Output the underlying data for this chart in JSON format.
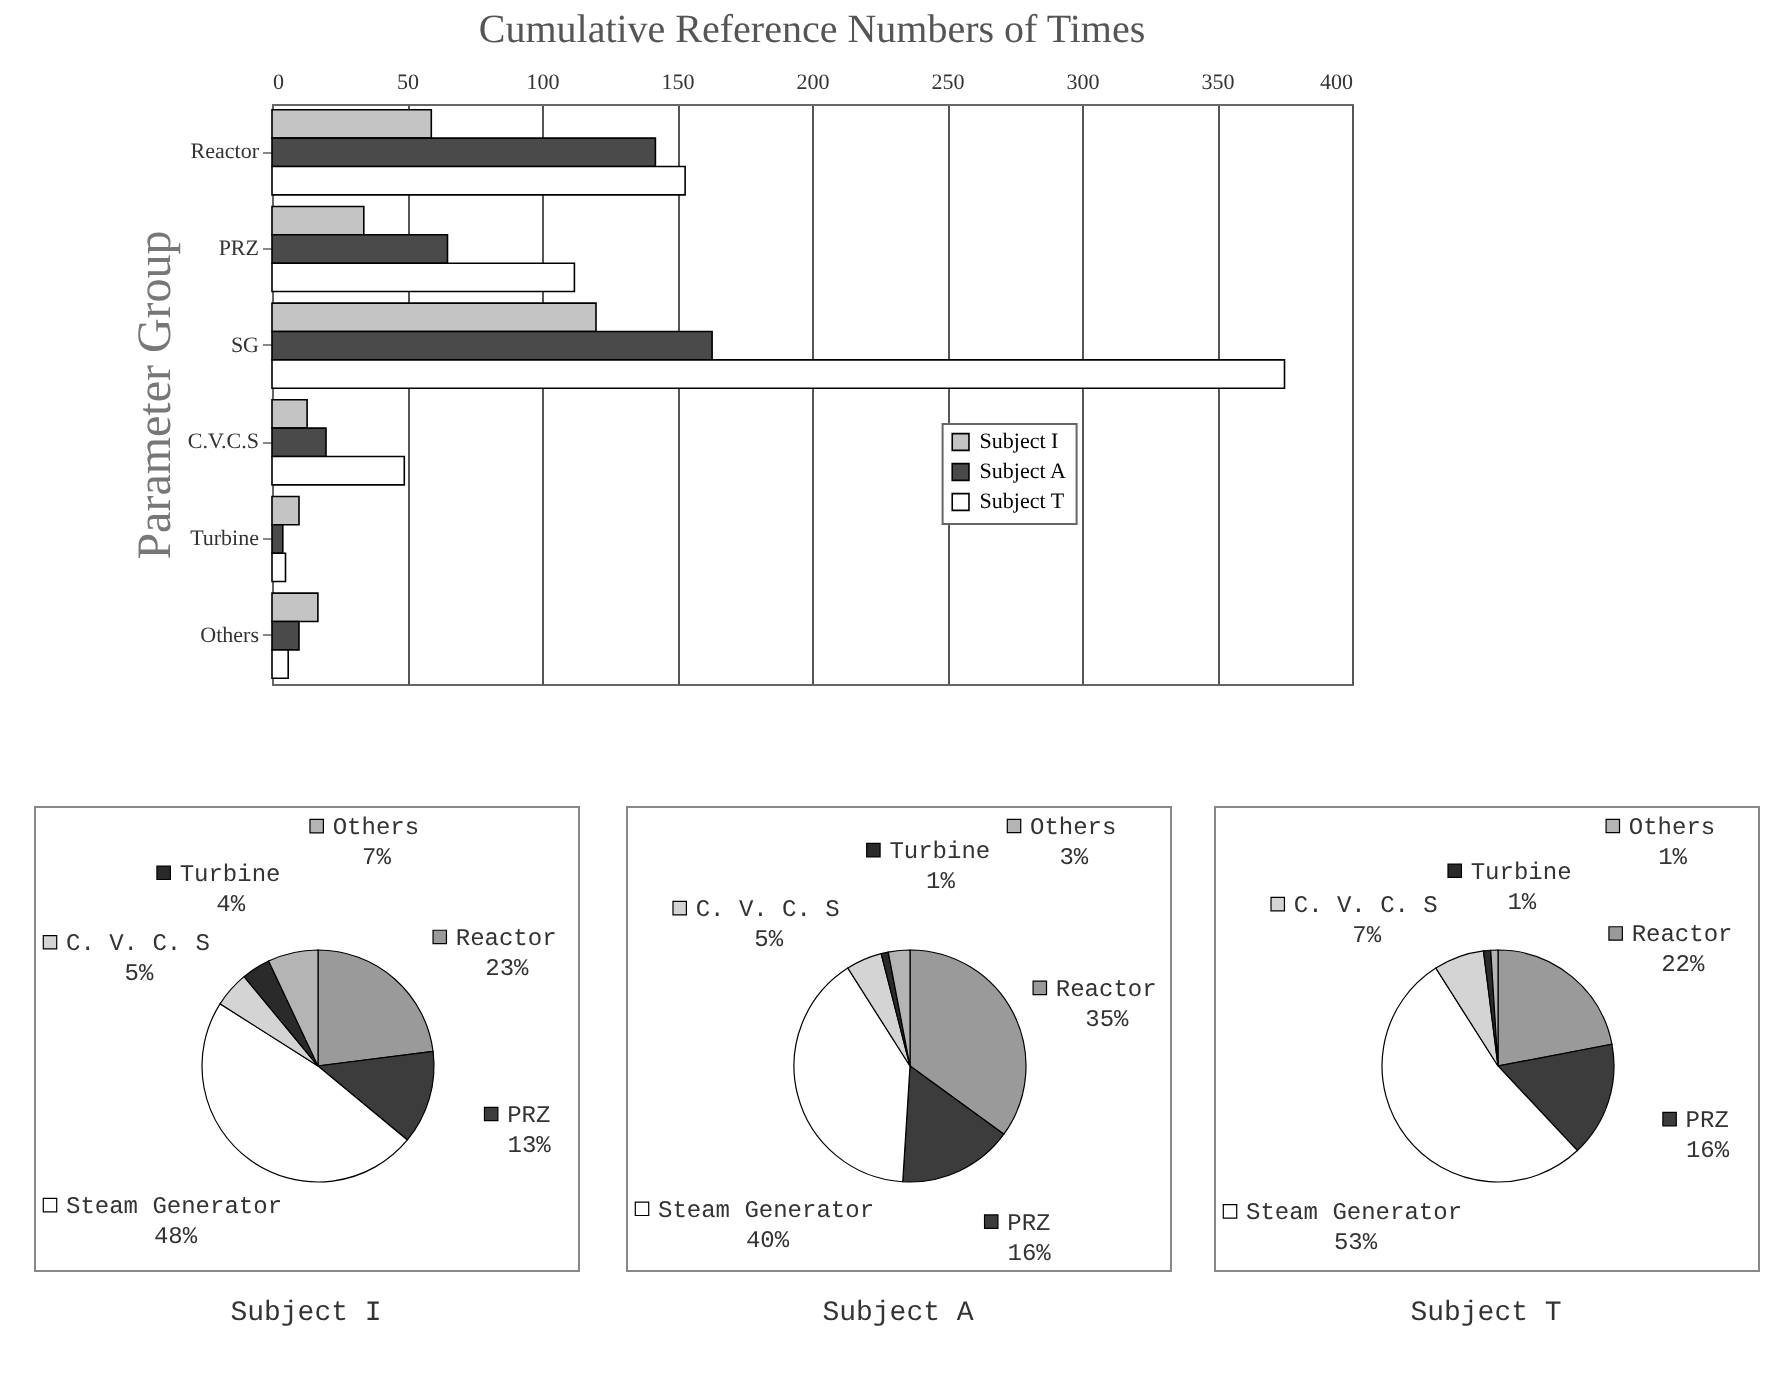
{
  "chart_data": [
    {
      "type": "bar",
      "orientation": "horizontal",
      "title": "Cumulative Reference Numbers of Times",
      "ylabel": "Parameter Group",
      "categories": [
        "Reactor",
        "PRZ",
        "SG",
        "C.V.C.S",
        "Turbine",
        "Others"
      ],
      "series": [
        {
          "name": "Subject I",
          "color": "#c4c4c4",
          "values": [
            59,
            34,
            120,
            13,
            10,
            17
          ]
        },
        {
          "name": "Subject A",
          "color": "#4a4a4a",
          "values": [
            142,
            65,
            163,
            20,
            4,
            10
          ]
        },
        {
          "name": "Subject T",
          "color": "#ffffff",
          "values": [
            153,
            112,
            375,
            49,
            5,
            6
          ]
        }
      ],
      "xlim": [
        0,
        400
      ],
      "xticks": [
        0,
        50,
        100,
        150,
        200,
        250,
        300,
        350,
        400
      ],
      "grid": "x",
      "legend": "right"
    },
    {
      "type": "pie",
      "title": "Subject I",
      "legend": "top left",
      "categories": [
        "Reactor",
        "PRZ",
        "Steam Generator",
        "C. V. C. S",
        "Turbine",
        "Others"
      ],
      "values": [
        23,
        13,
        48,
        5,
        4,
        7
      ],
      "value_labels": [
        "23%",
        "13%",
        "48%",
        "5%",
        "4%",
        "7%"
      ],
      "colors": [
        "#9a9a9a",
        "#3c3c3c",
        "#ffffff",
        "#d4d4d4",
        "#2a2a2a",
        "#b4b4b4"
      ]
    },
    {
      "type": "pie",
      "title": "Subject A",
      "legend": "top left",
      "categories": [
        "Reactor",
        "PRZ",
        "Steam Generator",
        "C. V. C. S",
        "Turbine",
        "Others"
      ],
      "values": [
        35,
        16,
        40,
        5,
        1,
        3
      ],
      "value_labels": [
        "35%",
        "16%",
        "40%",
        "5%",
        "1%",
        "3%"
      ],
      "colors": [
        "#9a9a9a",
        "#3c3c3c",
        "#ffffff",
        "#d4d4d4",
        "#2a2a2a",
        "#b4b4b4"
      ]
    },
    {
      "type": "pie",
      "title": "Subject T",
      "legend": "top left",
      "categories": [
        "Reactor",
        "PRZ",
        "Steam Generator",
        "C. V. C. S",
        "Turbine",
        "Others"
      ],
      "values": [
        22,
        16,
        53,
        7,
        1,
        1
      ],
      "value_labels": [
        "22%",
        "16%",
        "53%",
        "7%",
        "1%",
        "1%"
      ],
      "colors": [
        "#9a9a9a",
        "#3c3c3c",
        "#ffffff",
        "#d4d4d4",
        "#2a2a2a",
        "#b4b4b4"
      ]
    }
  ]
}
